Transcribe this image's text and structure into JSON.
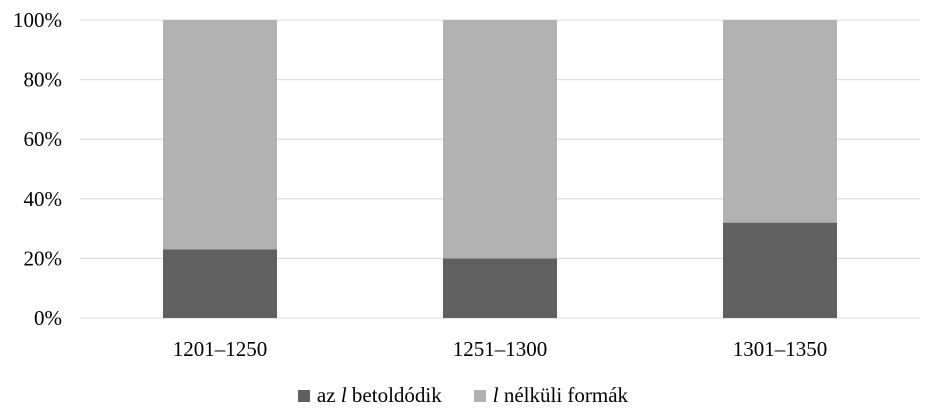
{
  "chart_data": {
    "type": "bar",
    "stacked": true,
    "categories": [
      "1201–1250",
      "1251–1300",
      "1301–1350"
    ],
    "series": [
      {
        "name_var": "l",
        "name_rest": "az",
        "name_suffix": "betoldódik",
        "color": "#606060",
        "values": [
          23,
          20,
          32
        ]
      },
      {
        "name_var": "l",
        "name_suffix": "nélküli formák",
        "color": "#b2b2b2",
        "values": [
          77,
          80,
          68
        ]
      }
    ],
    "ylim": [
      0,
      100
    ],
    "yticks": [
      0,
      20,
      40,
      60,
      80,
      100
    ],
    "ytick_labels": [
      "0%",
      "20%",
      "40%",
      "60%",
      "80%",
      "100%"
    ],
    "grid": true,
    "gridline_color": "#d9d9d9",
    "legend": "bottom"
  }
}
